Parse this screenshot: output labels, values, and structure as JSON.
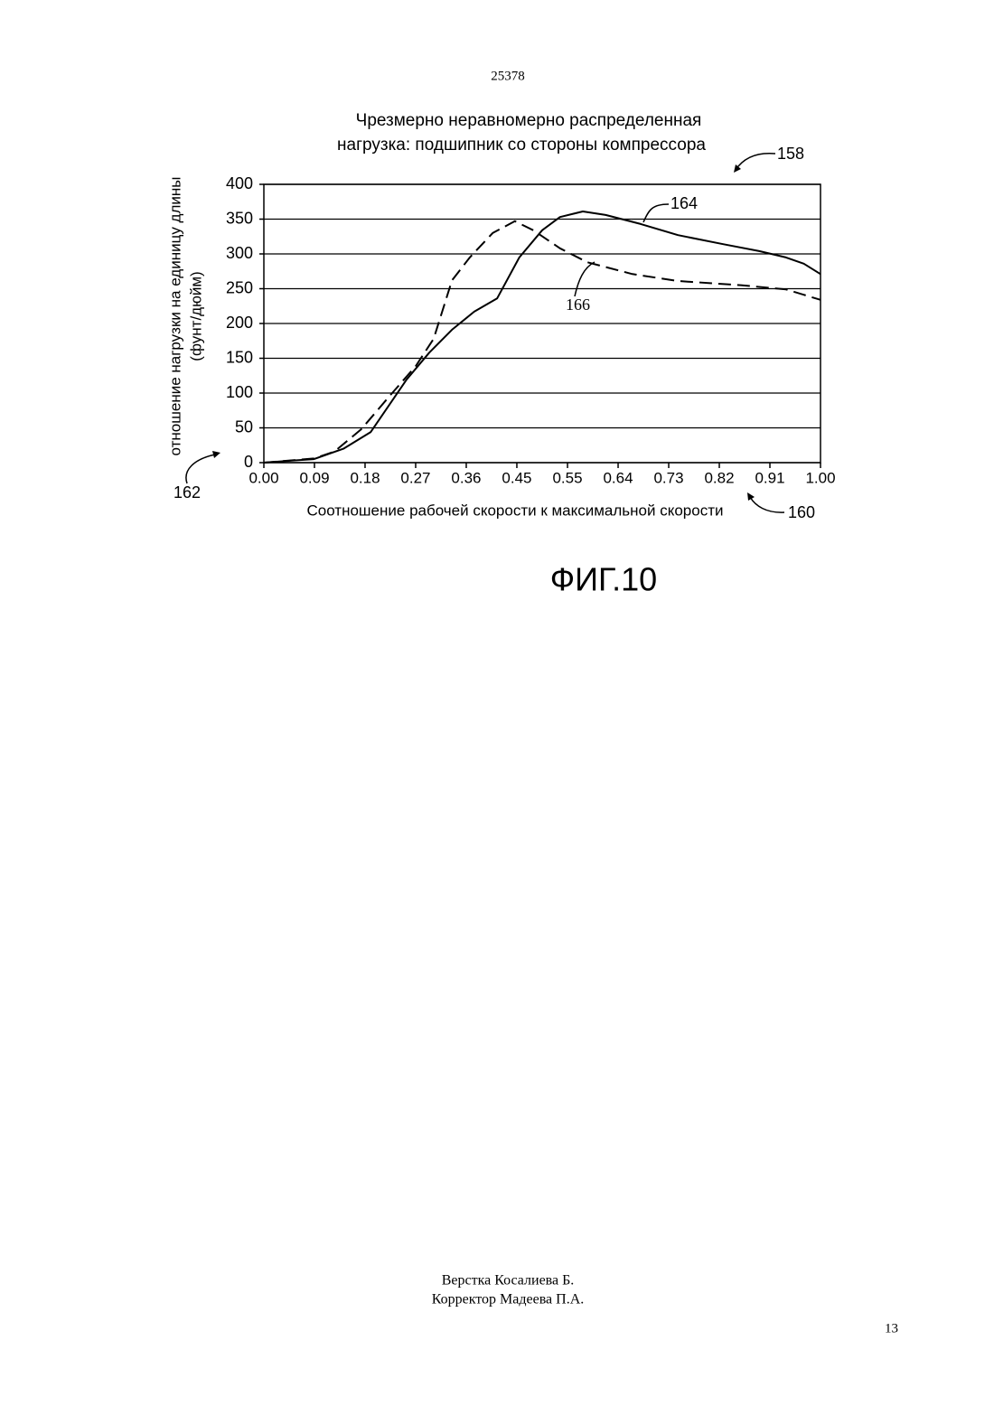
{
  "header": {
    "number": "25378"
  },
  "chart_data": {
    "type": "line",
    "title": [
      "Чрезмерно неравномерно распределенная",
      "нагрузка: подшипник со стороны компрессора"
    ],
    "y_label": [
      "отношение нагрузки на единицу длины",
      "(фунт/дюйм)"
    ],
    "x_label": "Соотношение рабочей скорости к максимальной скорости",
    "xlim": [
      0,
      1
    ],
    "ylim": [
      0,
      400
    ],
    "xticks": [
      {
        "value": 0,
        "label": "0.00"
      },
      {
        "value": 0.0909,
        "label": "0.09"
      },
      {
        "value": 0.1818,
        "label": "0.18"
      },
      {
        "value": 0.2727,
        "label": "0.27"
      },
      {
        "value": 0.3636,
        "label": "0.36"
      },
      {
        "value": 0.4545,
        "label": "0.45"
      },
      {
        "value": 0.5455,
        "label": "0.55"
      },
      {
        "value": 0.6364,
        "label": "0.64"
      },
      {
        "value": 0.7273,
        "label": "0.73"
      },
      {
        "value": 0.8182,
        "label": "0.82"
      },
      {
        "value": 0.9091,
        "label": "0.91"
      },
      {
        "value": 1,
        "label": "1.00"
      }
    ],
    "yticks": [
      0,
      50,
      100,
      150,
      200,
      250,
      300,
      350,
      400
    ],
    "grid": true,
    "series": [
      {
        "name": "164",
        "color": "#000000",
        "line_style": "solid",
        "x": [
          0,
          0.05,
          0.09,
          0.143,
          0.192,
          0.256,
          0.297,
          0.338,
          0.378,
          0.419,
          0.459,
          0.5,
          0.532,
          0.573,
          0.614,
          0.677,
          0.744,
          0.825,
          0.89,
          0.938,
          0.97,
          1.0
        ],
        "values": [
          0,
          3,
          5,
          20,
          44,
          119,
          158,
          191,
          217,
          236,
          295,
          334,
          353,
          361,
          356,
          343,
          327,
          314,
          304,
          295,
          286,
          271
        ]
      },
      {
        "name": "166",
        "color": "#000000",
        "line_style": "dashed",
        "x": [
          0,
          0.09,
          0.127,
          0.175,
          0.224,
          0.273,
          0.305,
          0.338,
          0.37,
          0.411,
          0.451,
          0.484,
          0.532,
          0.581,
          0.662,
          0.744,
          0.857,
          0.938,
          1.0
        ],
        "values": [
          0,
          6,
          16,
          48,
          94,
          139,
          178,
          262,
          295,
          330,
          347,
          334,
          308,
          288,
          271,
          261,
          255,
          249,
          234
        ]
      }
    ],
    "annotations": [
      "158",
      "160",
      "162"
    ]
  },
  "figure_caption": "ФИГ.10",
  "footer": {
    "lines": [
      "Верстка Косалиева Б.",
      "Корректор Мадеева П.А."
    ],
    "page_number": "13"
  }
}
